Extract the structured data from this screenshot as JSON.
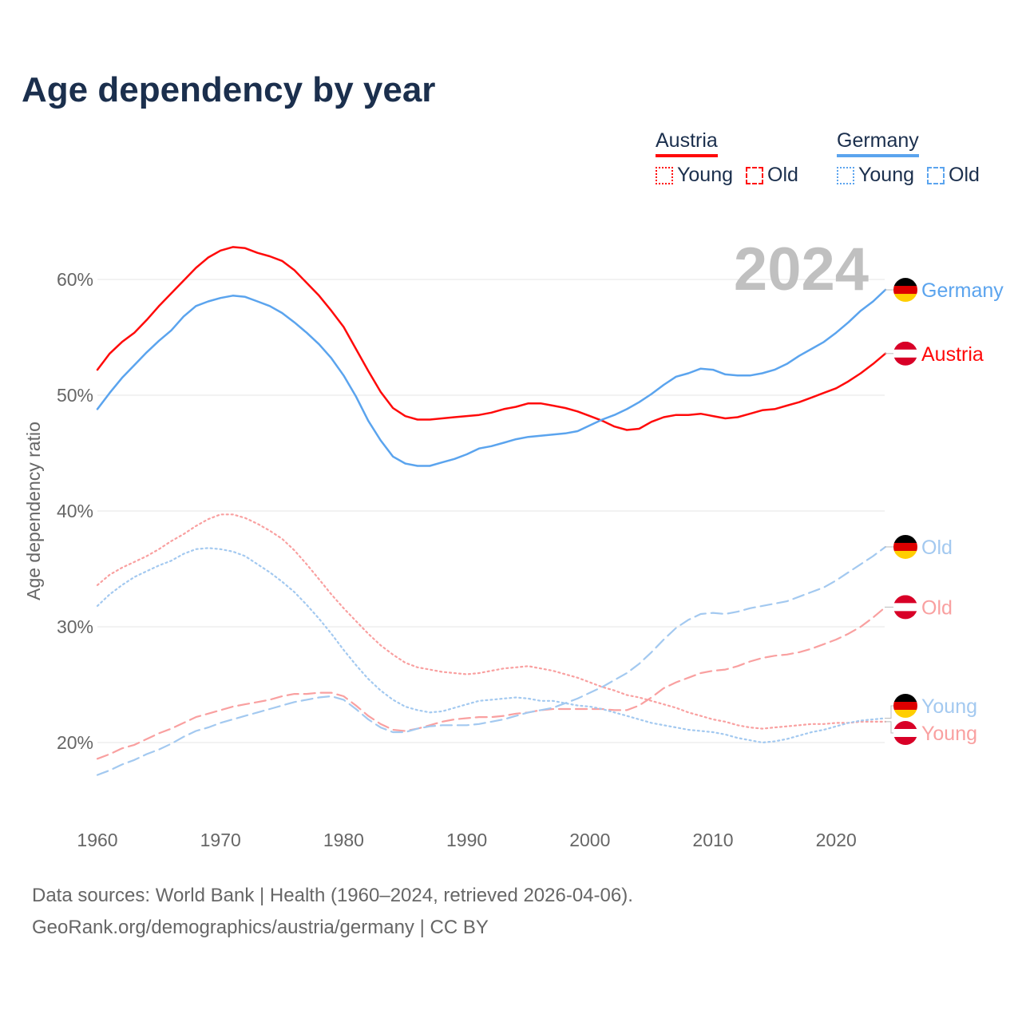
{
  "title": "Age dependency by year",
  "legend": {
    "austria": {
      "label": "Austria",
      "young": "Young",
      "old": "Old"
    },
    "germany": {
      "label": "Germany",
      "young": "Young",
      "old": "Old"
    }
  },
  "colors": {
    "austria": "#ff0a0a",
    "austria_light": "#f9a0a0",
    "germany": "#5ba4ee",
    "germany_light": "#a3c9f0",
    "title": "#1b2f4d",
    "grid": "#e6e6e6",
    "year_overlay": "#c0c0c0"
  },
  "year_overlay": "2024",
  "footer": {
    "line1": "Data sources: World Bank | Health (1960–2024, retrieved 2026-04-06).",
    "line2": "GeoRank.org/demographics/austria/germany | CC BY"
  },
  "chart_data": {
    "type": "line",
    "title": "Age dependency by year",
    "xlabel": "",
    "ylabel": "Age dependency ratio",
    "xlim": [
      1960,
      2024
    ],
    "ylim": [
      14,
      64
    ],
    "x_ticks": [
      "1960",
      "1970",
      "1980",
      "1990",
      "2000",
      "2010",
      "2020"
    ],
    "y_ticks": [
      "20%",
      "30%",
      "40%",
      "50%",
      "60%"
    ],
    "y_tick_values": [
      20,
      30,
      40,
      50,
      60
    ],
    "grid": true,
    "legend": "top-right",
    "x_start": 1960,
    "series": [
      {
        "name": "Austria",
        "label": "Austria",
        "style": "solid",
        "color": "#ff0a0a",
        "flag": "austria",
        "values": [
          52.2,
          53.6,
          54.6,
          55.4,
          56.5,
          57.7,
          58.8,
          59.9,
          61.0,
          61.9,
          62.5,
          62.8,
          62.7,
          62.3,
          62.0,
          61.6,
          60.8,
          59.7,
          58.6,
          57.3,
          55.9,
          54.0,
          52.1,
          50.3,
          48.9,
          48.2,
          47.9,
          47.9,
          48.0,
          48.1,
          48.2,
          48.3,
          48.5,
          48.8,
          49.0,
          49.3,
          49.3,
          49.1,
          48.9,
          48.6,
          48.2,
          47.8,
          47.3,
          47.0,
          47.1,
          47.7,
          48.1,
          48.3,
          48.3,
          48.4,
          48.2,
          48.0,
          48.1,
          48.4,
          48.7,
          48.8,
          49.1,
          49.4,
          49.8,
          50.2,
          50.6,
          51.2,
          51.9,
          52.7,
          53.6
        ]
      },
      {
        "name": "Germany",
        "label": "Germany",
        "style": "solid",
        "color": "#5ba4ee",
        "flag": "germany",
        "values": [
          48.8,
          50.2,
          51.5,
          52.6,
          53.7,
          54.7,
          55.6,
          56.8,
          57.7,
          58.1,
          58.4,
          58.6,
          58.5,
          58.1,
          57.7,
          57.1,
          56.3,
          55.4,
          54.4,
          53.2,
          51.7,
          49.9,
          47.8,
          46.1,
          44.7,
          44.1,
          43.9,
          43.9,
          44.2,
          44.5,
          44.9,
          45.4,
          45.6,
          45.9,
          46.2,
          46.4,
          46.5,
          46.6,
          46.7,
          46.9,
          47.4,
          47.9,
          48.3,
          48.8,
          49.4,
          50.1,
          50.9,
          51.6,
          51.9,
          52.3,
          52.2,
          51.8,
          51.7,
          51.7,
          51.9,
          52.2,
          52.7,
          53.4,
          54.0,
          54.6,
          55.4,
          56.3,
          57.3,
          58.1,
          59.1
        ]
      },
      {
        "name": "Austria Young",
        "label": "Young",
        "style": "dotted",
        "color": "#f9a0a0",
        "flag": "austria",
        "values": [
          33.6,
          34.5,
          35.1,
          35.6,
          36.1,
          36.7,
          37.4,
          38.0,
          38.7,
          39.3,
          39.7,
          39.7,
          39.4,
          38.9,
          38.3,
          37.6,
          36.6,
          35.4,
          34.1,
          32.8,
          31.6,
          30.5,
          29.4,
          28.4,
          27.6,
          26.9,
          26.5,
          26.3,
          26.1,
          26.0,
          25.9,
          26.0,
          26.2,
          26.4,
          26.5,
          26.6,
          26.4,
          26.2,
          25.9,
          25.6,
          25.2,
          24.8,
          24.5,
          24.1,
          23.9,
          23.6,
          23.3,
          23.0,
          22.6,
          22.3,
          22.0,
          21.8,
          21.5,
          21.3,
          21.2,
          21.3,
          21.4,
          21.5,
          21.6,
          21.6,
          21.7,
          21.7,
          21.8,
          21.8,
          21.8
        ]
      },
      {
        "name": "Austria Old",
        "label": "Old",
        "style": "dashed",
        "color": "#f9a0a0",
        "flag": "austria",
        "values": [
          18.6,
          19.0,
          19.5,
          19.8,
          20.3,
          20.8,
          21.2,
          21.7,
          22.2,
          22.5,
          22.8,
          23.1,
          23.3,
          23.5,
          23.7,
          24.0,
          24.2,
          24.2,
          24.3,
          24.3,
          24.0,
          23.2,
          22.3,
          21.6,
          21.1,
          21.0,
          21.2,
          21.5,
          21.8,
          22.0,
          22.1,
          22.2,
          22.2,
          22.3,
          22.5,
          22.6,
          22.8,
          22.9,
          22.9,
          22.9,
          22.9,
          22.9,
          22.8,
          22.8,
          23.2,
          23.9,
          24.7,
          25.2,
          25.6,
          26.0,
          26.2,
          26.3,
          26.6,
          27.0,
          27.3,
          27.5,
          27.6,
          27.8,
          28.1,
          28.5,
          28.9,
          29.4,
          30.0,
          30.8,
          31.7
        ]
      },
      {
        "name": "Germany Young",
        "label": "Young",
        "style": "dotted",
        "color": "#a3c9f0",
        "flag": "germany",
        "values": [
          31.8,
          32.8,
          33.6,
          34.3,
          34.8,
          35.3,
          35.7,
          36.3,
          36.7,
          36.8,
          36.7,
          36.5,
          36.1,
          35.4,
          34.7,
          33.9,
          33.0,
          31.9,
          30.7,
          29.4,
          28.0,
          26.7,
          25.5,
          24.5,
          23.7,
          23.1,
          22.8,
          22.6,
          22.7,
          23.0,
          23.3,
          23.6,
          23.7,
          23.8,
          23.9,
          23.8,
          23.6,
          23.6,
          23.4,
          23.2,
          23.1,
          22.9,
          22.6,
          22.3,
          22.0,
          21.7,
          21.5,
          21.3,
          21.1,
          21.0,
          20.9,
          20.7,
          20.4,
          20.2,
          20.0,
          20.1,
          20.3,
          20.6,
          20.9,
          21.1,
          21.4,
          21.7,
          21.9,
          22.0,
          22.1
        ]
      },
      {
        "name": "Germany Old",
        "label": "Old",
        "style": "dashed",
        "color": "#a3c9f0",
        "flag": "germany",
        "values": [
          17.2,
          17.6,
          18.1,
          18.5,
          19.0,
          19.4,
          19.9,
          20.5,
          21.0,
          21.3,
          21.7,
          22.0,
          22.3,
          22.6,
          22.9,
          23.2,
          23.5,
          23.7,
          23.9,
          24.0,
          23.7,
          22.9,
          22.0,
          21.3,
          20.9,
          20.9,
          21.2,
          21.4,
          21.5,
          21.5,
          21.5,
          21.6,
          21.8,
          22.0,
          22.3,
          22.6,
          22.8,
          23.0,
          23.4,
          23.8,
          24.3,
          24.8,
          25.4,
          26.0,
          26.8,
          27.8,
          28.9,
          29.9,
          30.6,
          31.1,
          31.2,
          31.1,
          31.3,
          31.6,
          31.8,
          32.0,
          32.2,
          32.6,
          33.0,
          33.4,
          34.0,
          34.7,
          35.4,
          36.1,
          36.9
        ]
      }
    ]
  }
}
